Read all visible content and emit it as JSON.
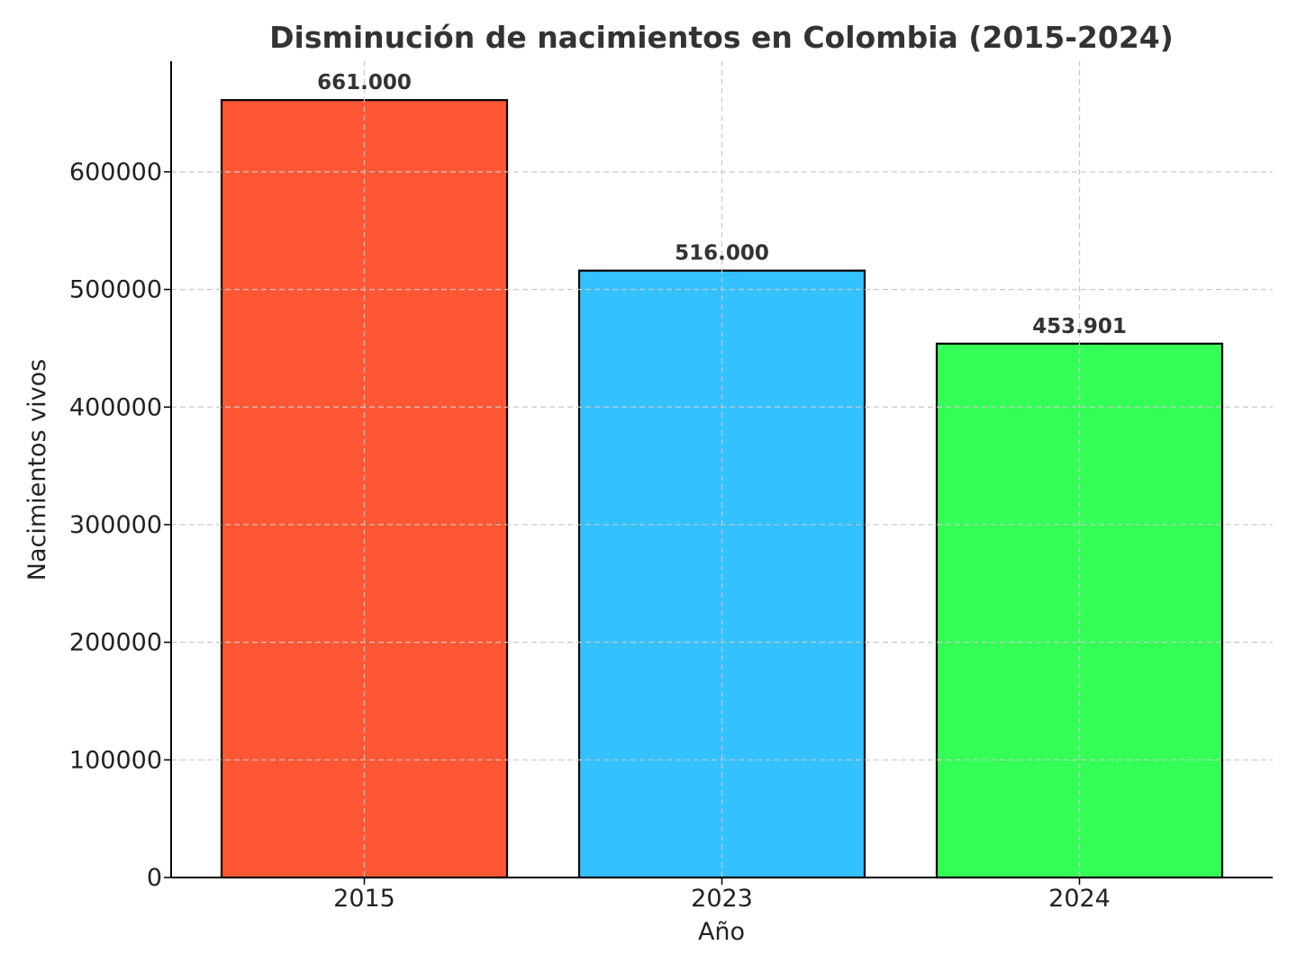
{
  "chart_data": {
    "type": "bar",
    "title": "Disminución de nacimientos en Colombia (2015-2024)",
    "xlabel": "Año",
    "ylabel": "Nacimientos vivos",
    "categories": [
      "2015",
      "2023",
      "2024"
    ],
    "values": [
      661000,
      516000,
      453901
    ],
    "data_labels": [
      "661.000",
      "516.000",
      "453.901"
    ],
    "colors": [
      "#ff5733",
      "#33c1ff",
      "#33ff57"
    ],
    "ylim": [
      0,
      694050
    ],
    "yticks": [
      0,
      100000,
      200000,
      300000,
      400000,
      500000,
      600000
    ],
    "ytick_labels": [
      "0",
      "100000",
      "200000",
      "300000",
      "400000",
      "500000",
      "600000"
    ],
    "grid": true,
    "legend": "none"
  }
}
